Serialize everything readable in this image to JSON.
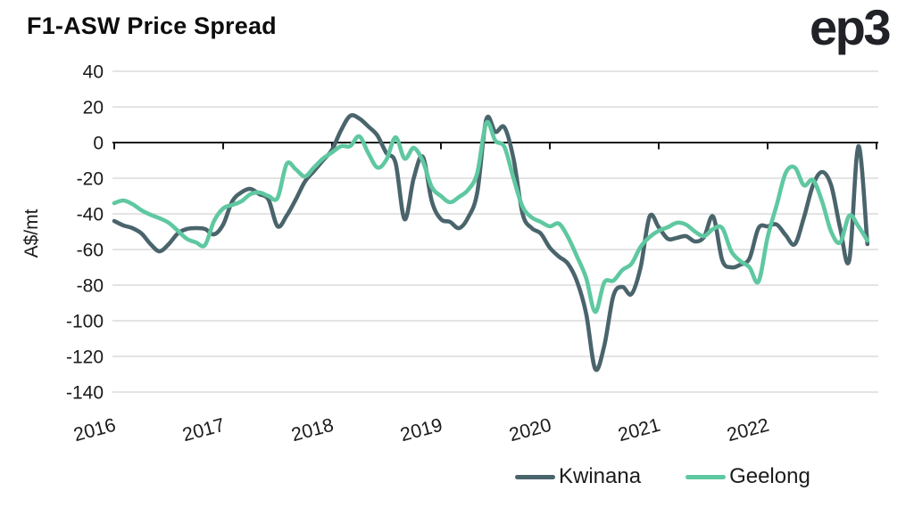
{
  "header": {
    "title": "F1-ASW Price Spread",
    "logo": "ep3"
  },
  "chart_data": {
    "type": "line",
    "title": "F1-ASW Price Spread",
    "xlabel": "",
    "ylabel": "A$/mt",
    "x_unit": "month",
    "x_start": "2016-01",
    "x_end": "2022-12",
    "x_tick_labels": [
      "2016",
      "2017",
      "2018",
      "2019",
      "2020",
      "2021",
      "2022"
    ],
    "y_ticks": [
      40,
      20,
      0,
      -20,
      -40,
      -60,
      -80,
      -100,
      -120,
      -140
    ],
    "ylim": [
      -150,
      45
    ],
    "grid": "horizontal",
    "zero_axis": true,
    "legend_position": "bottom",
    "series": [
      {
        "name": "Kwinana",
        "color": "#4a646c",
        "values": [
          -44,
          -46.5,
          -48,
          -51,
          -57,
          -61,
          -57,
          -51,
          -48.5,
          -48,
          -48.5,
          -51.5,
          -46,
          -33,
          -28,
          -26,
          -29,
          -32,
          -47,
          -41,
          -32,
          -22,
          -16,
          -10,
          -4,
          7,
          15,
          13.5,
          9,
          4,
          -6,
          -11.5,
          -43,
          -20,
          -8,
          -33,
          -43,
          -44.5,
          -48,
          -42,
          -28,
          13,
          6,
          8.5,
          -9,
          -40,
          -48,
          -51,
          -59,
          -64,
          -68,
          -78,
          -96,
          -127,
          -114,
          -86,
          -81,
          -85,
          -70,
          -41.5,
          -47.5,
          -54,
          -53.5,
          -52.5,
          -55.5,
          -53,
          -41.5,
          -66,
          -70,
          -68.5,
          -65,
          -48,
          -47,
          -46,
          -52,
          -57,
          -42,
          -24,
          -16.5,
          -24,
          -48,
          -66,
          -2,
          -57
        ]
      },
      {
        "name": "Geelong",
        "color": "#5fc8a1",
        "values": [
          -34,
          -32.5,
          -34.5,
          -38,
          -40.5,
          -42.5,
          -45,
          -49.5,
          -54,
          -56,
          -57.5,
          -44,
          -37,
          -35,
          -33,
          -29,
          -28,
          -30,
          -31,
          -12,
          -15,
          -19,
          -14,
          -9,
          -5.5,
          -2,
          -2,
          3.5,
          -6,
          -14,
          -9.5,
          3,
          -9,
          -3,
          -10.5,
          -25,
          -30,
          -33.5,
          -30.5,
          -26.5,
          -17,
          11,
          1,
          -2.5,
          -20,
          -36,
          -42,
          -44.5,
          -47,
          -45.5,
          -53,
          -64,
          -76,
          -95,
          -78.5,
          -77.5,
          -71.5,
          -68,
          -58.5,
          -53,
          -49.5,
          -47.5,
          -45,
          -46,
          -50,
          -52.5,
          -48.5,
          -48,
          -61,
          -66.5,
          -70,
          -78,
          -53,
          -35,
          -17,
          -14,
          -24,
          -21,
          -33,
          -50,
          -56,
          -41,
          -47,
          -55
        ]
      }
    ]
  },
  "legend": {
    "items": [
      {
        "label": "Kwinana",
        "color": "#4a646c"
      },
      {
        "label": "Geelong",
        "color": "#5fc8a1"
      }
    ]
  },
  "colors": {
    "grid": "#dcdcdc",
    "axis": "#161616",
    "tick_text": "#1a1a1a"
  }
}
